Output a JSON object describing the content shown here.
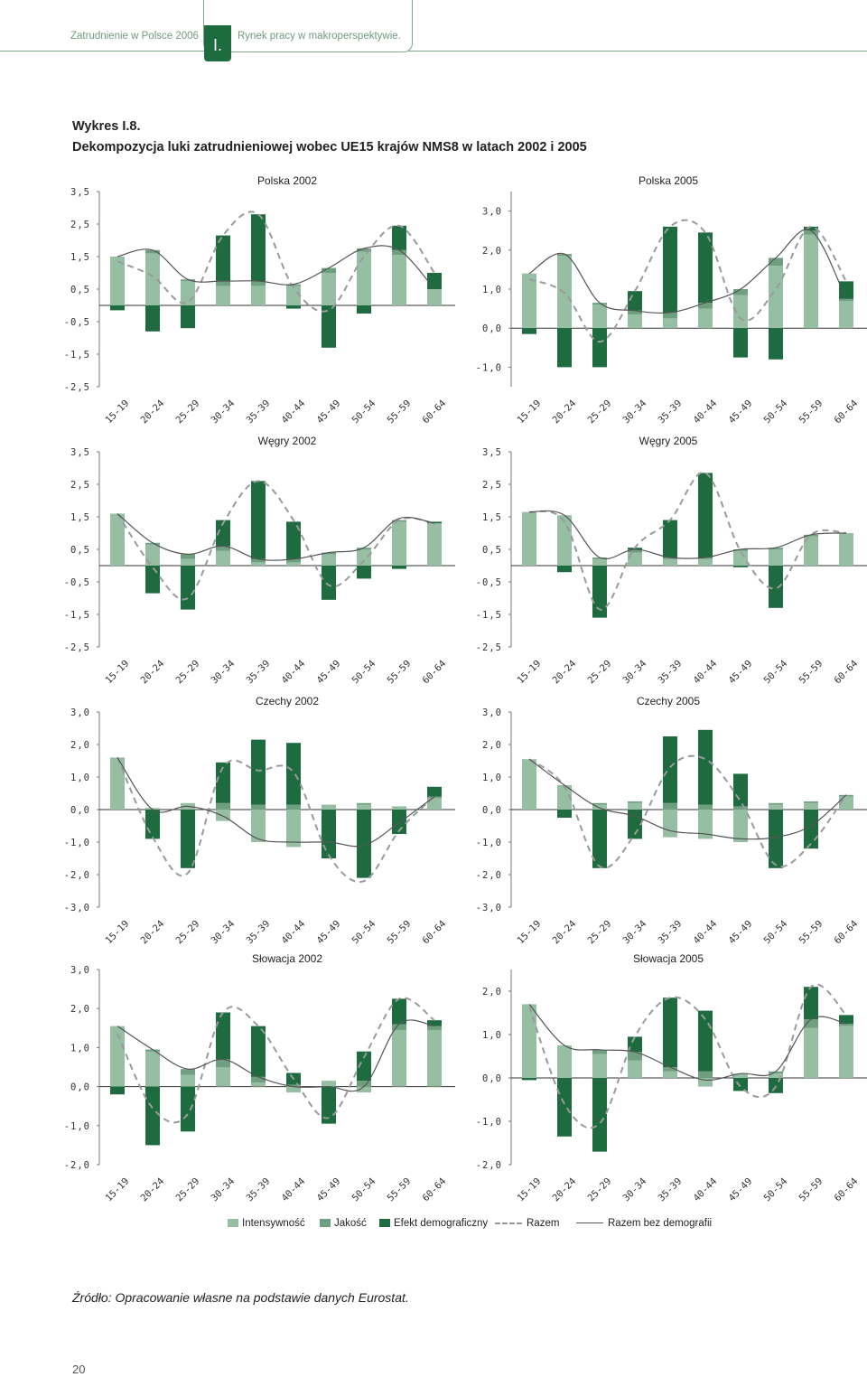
{
  "header": {
    "left_text": "Zatrudnienie w Polsce 2006",
    "badge": "I.",
    "right_text": "Rynek pracy w makroperspektywie."
  },
  "figure": {
    "label": "Wykres I.8.",
    "title": "Dekompozycja luki zatrudnieniowej wobec UE15 krajów NMS8 w latach 2002 i 2005"
  },
  "colors": {
    "intensity": "#96bea3",
    "quality": "#6e9f7f",
    "demographic": "#1e6b3f",
    "total": "#9a9a9a",
    "total_no_demo": "#555555"
  },
  "legend": {
    "intensity": "Intensywność",
    "quality": "Jakość",
    "demographic": "Efekt demograficzny",
    "total": "Razem",
    "total_no_demo": "Razem bez demografii"
  },
  "source": "Źródło: Opracowanie własne na podstawie danych Eurostat.",
  "page_number": "20",
  "chart_data": [
    {
      "type": "bar",
      "title": "Polska   2002",
      "categories": [
        "15-19",
        "20-24",
        "25-29",
        "30-34",
        "35-39",
        "40-44",
        "45-49",
        "50-54",
        "55-59",
        "60-64"
      ],
      "yticks": [
        "3,5",
        "2,5",
        "1,5",
        "0,5",
        "-0,5",
        "-1,5",
        "-2,5"
      ],
      "ylim": [
        -2.5,
        3.5
      ],
      "series": [
        {
          "name": "Intensywność",
          "values": [
            1.5,
            1.6,
            0.75,
            0.6,
            0.6,
            0.6,
            1.0,
            1.65,
            1.55,
            0.5
          ]
        },
        {
          "name": "Jakość",
          "values": [
            0.0,
            0.1,
            0.05,
            0.15,
            0.15,
            0.05,
            0.15,
            0.1,
            0.15,
            0.0
          ]
        },
        {
          "name": "Efekt demograficzny",
          "values": [
            -0.15,
            -0.8,
            -0.7,
            1.4,
            2.05,
            -0.1,
            -1.3,
            -0.25,
            0.75,
            0.5
          ]
        },
        {
          "name": "Razem",
          "values": [
            1.35,
            0.9,
            0.1,
            2.15,
            2.8,
            0.55,
            -0.15,
            1.5,
            2.45,
            1.0
          ]
        },
        {
          "name": "Razem bez demografii",
          "values": [
            1.5,
            1.7,
            0.8,
            0.75,
            0.75,
            0.65,
            1.15,
            1.75,
            1.7,
            0.5
          ]
        }
      ]
    },
    {
      "type": "bar",
      "title": "Polska   2005",
      "categories": [
        "15-19",
        "20-24",
        "25-29",
        "30-34",
        "35-39",
        "40-44",
        "45-49",
        "50-54",
        "55-59",
        "60-64"
      ],
      "yticks": [
        "3,0",
        "2,0",
        "1,0",
        "0,0",
        "-1,0"
      ],
      "ylim": [
        -1.5,
        3.5
      ],
      "series": [
        {
          "name": "Intensywność",
          "values": [
            1.4,
            1.85,
            0.6,
            0.35,
            0.25,
            0.5,
            0.85,
            1.6,
            2.4,
            0.7
          ]
        },
        {
          "name": "Jakość",
          "values": [
            0.0,
            0.05,
            0.05,
            0.1,
            0.15,
            0.15,
            0.15,
            0.2,
            0.1,
            0.05
          ]
        },
        {
          "name": "Efekt demograficzny",
          "values": [
            -0.15,
            -1.0,
            -1.0,
            0.5,
            2.2,
            1.8,
            -0.75,
            -0.8,
            0.1,
            0.45
          ]
        },
        {
          "name": "Razem",
          "values": [
            1.25,
            0.9,
            -0.35,
            0.95,
            2.6,
            2.45,
            0.25,
            1.0,
            2.6,
            1.2
          ]
        },
        {
          "name": "Razem bez demografii",
          "values": [
            1.4,
            1.9,
            0.65,
            0.45,
            0.4,
            0.65,
            1.0,
            1.8,
            2.5,
            0.75
          ]
        }
      ]
    },
    {
      "type": "bar",
      "title": "Węgry   2002",
      "categories": [
        "15-19",
        "20-24",
        "25-29",
        "30-34",
        "35-39",
        "40-44",
        "45-49",
        "50-54",
        "55-59",
        "60-64"
      ],
      "yticks": [
        "3,5",
        "2,5",
        "1,5",
        "0,5",
        "-0,5",
        "-1,5",
        "-2,5"
      ],
      "ylim": [
        -2.5,
        3.5
      ],
      "series": [
        {
          "name": "Intensywność",
          "values": [
            1.6,
            0.65,
            0.2,
            0.45,
            0.1,
            0.1,
            0.35,
            0.5,
            1.35,
            1.3
          ]
        },
        {
          "name": "Jakość",
          "values": [
            0.0,
            0.05,
            0.15,
            0.15,
            0.1,
            0.1,
            0.05,
            0.05,
            0.05,
            0.0
          ]
        },
        {
          "name": "Efekt demograficzny",
          "values": [
            0.0,
            -0.85,
            -1.35,
            0.8,
            2.4,
            1.15,
            -1.05,
            -0.4,
            -0.1,
            0.05
          ]
        },
        {
          "name": "Razem",
          "values": [
            1.6,
            -0.05,
            -1.0,
            1.3,
            2.6,
            1.4,
            -0.6,
            0.15,
            1.4,
            1.3
          ]
        },
        {
          "name": "Razem bez demografii",
          "values": [
            1.6,
            0.7,
            0.35,
            0.6,
            0.2,
            0.2,
            0.4,
            0.55,
            1.45,
            1.3
          ]
        }
      ]
    },
    {
      "type": "bar",
      "title": "Węgry   2005",
      "categories": [
        "15-19",
        "20-24",
        "25-29",
        "30-34",
        "35-39",
        "40-44",
        "45-49",
        "50-54",
        "55-59",
        "60-64"
      ],
      "yticks": [
        "3,5",
        "2,5",
        "1,5",
        "0,5",
        "-0,5",
        "-1,5",
        "-2,5"
      ],
      "ylim": [
        -2.5,
        3.5
      ],
      "series": [
        {
          "name": "Intensywność",
          "values": [
            1.65,
            1.55,
            0.2,
            0.4,
            0.2,
            0.2,
            0.45,
            0.5,
            0.9,
            1.0
          ]
        },
        {
          "name": "Jakość",
          "values": [
            0.0,
            0.0,
            0.05,
            0.1,
            0.05,
            0.05,
            0.05,
            0.05,
            0.05,
            0.0
          ]
        },
        {
          "name": "Efekt demograficzny",
          "values": [
            0.0,
            -0.2,
            -1.6,
            0.05,
            1.15,
            2.6,
            -0.05,
            -1.3,
            0.0,
            0.0
          ]
        },
        {
          "name": "Razem",
          "values": [
            1.65,
            1.35,
            -1.35,
            0.55,
            1.4,
            2.85,
            0.45,
            -0.7,
            0.95,
            1.0
          ]
        },
        {
          "name": "Razem bez demografii",
          "values": [
            1.65,
            1.55,
            0.25,
            0.5,
            0.25,
            0.25,
            0.5,
            0.55,
            0.95,
            1.0
          ]
        }
      ]
    },
    {
      "type": "bar",
      "title": "Czechy   2002",
      "categories": [
        "15-19",
        "20-24",
        "25-29",
        "30-34",
        "35-39",
        "40-44",
        "45-49",
        "50-54",
        "55-59",
        "60-64"
      ],
      "yticks": [
        "3,0",
        "2,0",
        "1,0",
        "0,0",
        "-1,0",
        "-2,0",
        "-3,0"
      ],
      "ylim": [
        -3.0,
        3.0
      ],
      "series": [
        {
          "name": "Intensywność",
          "values": [
            1.6,
            0.05,
            0.2,
            -0.35,
            -1.0,
            -1.15,
            0.15,
            0.15,
            0.1,
            0.35
          ]
        },
        {
          "name": "Jakość",
          "values": [
            0.0,
            0.0,
            0.0,
            0.2,
            0.15,
            0.15,
            0.0,
            0.05,
            0.0,
            0.05
          ]
        },
        {
          "name": "Efekt demograficzny",
          "values": [
            0.0,
            -0.9,
            -1.8,
            1.25,
            2.0,
            1.9,
            -1.5,
            -2.1,
            -0.75,
            0.3
          ]
        },
        {
          "name": "Razem",
          "values": [
            1.6,
            -0.85,
            -1.95,
            1.3,
            1.2,
            1.15,
            -1.4,
            -2.2,
            -0.65,
            0.4
          ]
        },
        {
          "name": "Razem bez demografii",
          "values": [
            1.6,
            0.0,
            0.1,
            -0.2,
            -0.9,
            -1.0,
            -1.0,
            -1.1,
            -0.4,
            0.4
          ]
        }
      ]
    },
    {
      "type": "bar",
      "title": "Czechy   2005",
      "categories": [
        "15-19",
        "20-24",
        "25-29",
        "30-34",
        "35-39",
        "40-44",
        "45-49",
        "50-54",
        "55-59",
        "60-64"
      ],
      "yticks": [
        "3,0",
        "2,0",
        "1,0",
        "0,0",
        "-1,0",
        "-2,0",
        "-3,0"
      ],
      "ylim": [
        -3.0,
        3.0
      ],
      "series": [
        {
          "name": "Intensywność",
          "values": [
            1.55,
            0.75,
            0.15,
            0.2,
            -0.85,
            -0.9,
            -1.0,
            0.15,
            0.2,
            0.4
          ]
        },
        {
          "name": "Jakość",
          "values": [
            0.0,
            0.0,
            0.05,
            0.05,
            0.2,
            0.15,
            0.1,
            0.05,
            0.05,
            0.05
          ]
        },
        {
          "name": "Efekt demograficzny",
          "values": [
            0.0,
            -0.25,
            -1.8,
            -0.9,
            2.05,
            2.3,
            1.0,
            -1.8,
            -1.2,
            0.0
          ]
        },
        {
          "name": "Razem",
          "values": [
            1.55,
            0.7,
            -1.75,
            -0.75,
            1.3,
            1.55,
            0.25,
            -1.7,
            -1.05,
            0.45
          ]
        },
        {
          "name": "Razem bez demografii",
          "values": [
            1.55,
            0.75,
            0.05,
            -0.2,
            -0.65,
            -0.75,
            -0.9,
            -0.85,
            -0.5,
            0.45
          ]
        }
      ]
    },
    {
      "type": "bar",
      "title": "Słowacja   2002",
      "categories": [
        "15-19",
        "20-24",
        "25-29",
        "30-34",
        "35-39",
        "40-44",
        "45-49",
        "50-54",
        "55-59",
        "60-64"
      ],
      "yticks": [
        "3,0",
        "2,0",
        "1,0",
        "0,0",
        "-1,0",
        "-2,0"
      ],
      "ylim": [
        -2.0,
        3.0
      ],
      "series": [
        {
          "name": "Intensywność",
          "values": [
            1.55,
            0.9,
            0.3,
            0.5,
            0.1,
            -0.15,
            0.15,
            -0.15,
            1.45,
            1.45
          ]
        },
        {
          "name": "Jakość",
          "values": [
            0.0,
            0.05,
            0.15,
            0.2,
            0.15,
            0.05,
            0.0,
            0.15,
            0.15,
            0.1
          ]
        },
        {
          "name": "Efekt demograficzny",
          "values": [
            -0.2,
            -1.5,
            -1.15,
            1.2,
            1.3,
            0.3,
            -0.95,
            0.75,
            0.65,
            0.15
          ]
        },
        {
          "name": "Razem",
          "values": [
            1.35,
            -0.55,
            -0.7,
            1.9,
            1.55,
            0.2,
            -0.8,
            0.75,
            2.25,
            1.7
          ]
        },
        {
          "name": "Razem bez demografii",
          "values": [
            1.55,
            0.95,
            0.45,
            0.7,
            0.25,
            0.0,
            0.0,
            0.0,
            1.6,
            1.55
          ]
        }
      ]
    },
    {
      "type": "bar",
      "title": "Słowacja   2005",
      "categories": [
        "15-19",
        "20-24",
        "25-29",
        "30-34",
        "35-39",
        "40-44",
        "45-49",
        "50-54",
        "55-59",
        "60-64"
      ],
      "yticks": [
        "2,0",
        "1,0",
        "0,0",
        "-1,0",
        "-2,0"
      ],
      "ylim": [
        -2.0,
        2.5
      ],
      "series": [
        {
          "name": "Intensywność",
          "values": [
            1.7,
            0.75,
            0.55,
            0.4,
            0.15,
            -0.2,
            0.1,
            0.1,
            1.15,
            1.2
          ]
        },
        {
          "name": "Jakość",
          "values": [
            0.0,
            0.0,
            0.1,
            0.2,
            0.1,
            0.15,
            0.0,
            0.05,
            0.2,
            0.05
          ]
        },
        {
          "name": "Efekt demograficzny",
          "values": [
            -0.05,
            -1.35,
            -1.7,
            0.35,
            1.6,
            1.4,
            -0.3,
            -0.35,
            0.75,
            0.2
          ]
        },
        {
          "name": "Razem",
          "values": [
            1.65,
            -0.6,
            -1.05,
            0.95,
            1.85,
            1.35,
            -0.2,
            -0.2,
            2.1,
            1.45
          ]
        },
        {
          "name": "Razem bez demografii",
          "values": [
            1.7,
            0.75,
            0.65,
            0.6,
            0.25,
            -0.05,
            0.1,
            0.15,
            1.35,
            1.25
          ]
        }
      ]
    }
  ]
}
